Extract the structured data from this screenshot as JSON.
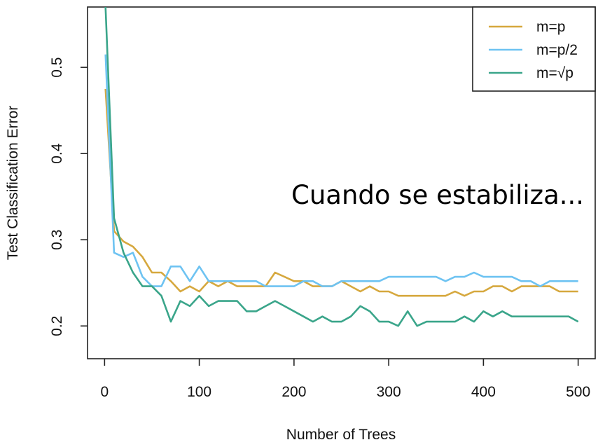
{
  "chart_data": {
    "type": "line",
    "xlabel": "Number of Trees",
    "ylabel": "Test Classification Error",
    "xlim": [
      -18,
      518
    ],
    "ylim": [
      0.162,
      0.57
    ],
    "xticks": [
      0,
      100,
      200,
      300,
      400,
      500
    ],
    "yticks": [
      0.2,
      0.3,
      0.4,
      0.5
    ],
    "xtick_labels": [
      "0",
      "100",
      "200",
      "300",
      "400",
      "500"
    ],
    "ytick_labels": [
      "0.2",
      "0.3",
      "0.4",
      "0.5"
    ],
    "grid": false,
    "legend_position": "top-right",
    "annotation": "Cuando se estabiliza...",
    "series": [
      {
        "name": "m=p",
        "color": "#D6A83E",
        "x": [
          1,
          10,
          20,
          30,
          40,
          50,
          60,
          70,
          80,
          90,
          100,
          110,
          120,
          130,
          140,
          150,
          160,
          170,
          180,
          190,
          200,
          210,
          220,
          230,
          240,
          250,
          260,
          270,
          280,
          290,
          300,
          310,
          320,
          330,
          340,
          350,
          360,
          370,
          380,
          390,
          400,
          410,
          420,
          430,
          440,
          450,
          460,
          470,
          480,
          490,
          500
        ],
        "y": [
          0.475,
          0.31,
          0.298,
          0.292,
          0.28,
          0.262,
          0.262,
          0.252,
          0.24,
          0.246,
          0.24,
          0.252,
          0.246,
          0.252,
          0.246,
          0.246,
          0.246,
          0.246,
          0.262,
          0.257,
          0.252,
          0.252,
          0.246,
          0.246,
          0.246,
          0.252,
          0.246,
          0.24,
          0.246,
          0.24,
          0.24,
          0.235,
          0.235,
          0.235,
          0.235,
          0.235,
          0.235,
          0.24,
          0.235,
          0.24,
          0.24,
          0.246,
          0.246,
          0.24,
          0.246,
          0.246,
          0.246,
          0.246,
          0.24,
          0.24,
          0.24
        ]
      },
      {
        "name": "m=p/2",
        "color": "#6EC3F2",
        "x": [
          1,
          10,
          20,
          30,
          40,
          50,
          60,
          70,
          80,
          90,
          100,
          110,
          120,
          130,
          140,
          150,
          160,
          170,
          180,
          190,
          200,
          210,
          220,
          230,
          240,
          250,
          260,
          270,
          280,
          290,
          300,
          310,
          320,
          330,
          340,
          350,
          360,
          370,
          380,
          390,
          400,
          410,
          420,
          430,
          440,
          450,
          460,
          470,
          480,
          490,
          500
        ],
        "y": [
          0.515,
          0.285,
          0.28,
          0.285,
          0.257,
          0.246,
          0.246,
          0.269,
          0.269,
          0.252,
          0.269,
          0.252,
          0.252,
          0.252,
          0.252,
          0.252,
          0.252,
          0.246,
          0.246,
          0.246,
          0.246,
          0.252,
          0.252,
          0.246,
          0.246,
          0.252,
          0.252,
          0.252,
          0.252,
          0.252,
          0.257,
          0.257,
          0.257,
          0.257,
          0.257,
          0.257,
          0.252,
          0.257,
          0.257,
          0.262,
          0.257,
          0.257,
          0.257,
          0.257,
          0.252,
          0.252,
          0.246,
          0.252,
          0.252,
          0.252,
          0.252
        ]
      },
      {
        "name": "m=√p",
        "color": "#3AA58A",
        "x": [
          1,
          10,
          20,
          30,
          40,
          50,
          60,
          70,
          80,
          90,
          100,
          110,
          120,
          130,
          140,
          150,
          160,
          170,
          180,
          190,
          200,
          210,
          220,
          230,
          240,
          250,
          260,
          270,
          280,
          290,
          300,
          310,
          320,
          330,
          340,
          350,
          360,
          370,
          380,
          390,
          400,
          410,
          420,
          430,
          440,
          450,
          460,
          470,
          480,
          490,
          500
        ],
        "y": [
          0.57,
          0.325,
          0.285,
          0.262,
          0.246,
          0.246,
          0.235,
          0.205,
          0.229,
          0.223,
          0.235,
          0.223,
          0.229,
          0.229,
          0.229,
          0.217,
          0.217,
          0.223,
          0.229,
          0.223,
          0.217,
          0.211,
          0.205,
          0.211,
          0.205,
          0.205,
          0.211,
          0.223,
          0.217,
          0.205,
          0.205,
          0.2,
          0.217,
          0.2,
          0.205,
          0.205,
          0.205,
          0.205,
          0.211,
          0.205,
          0.217,
          0.211,
          0.217,
          0.211,
          0.211,
          0.211,
          0.211,
          0.211,
          0.211,
          0.211,
          0.205
        ]
      }
    ]
  }
}
